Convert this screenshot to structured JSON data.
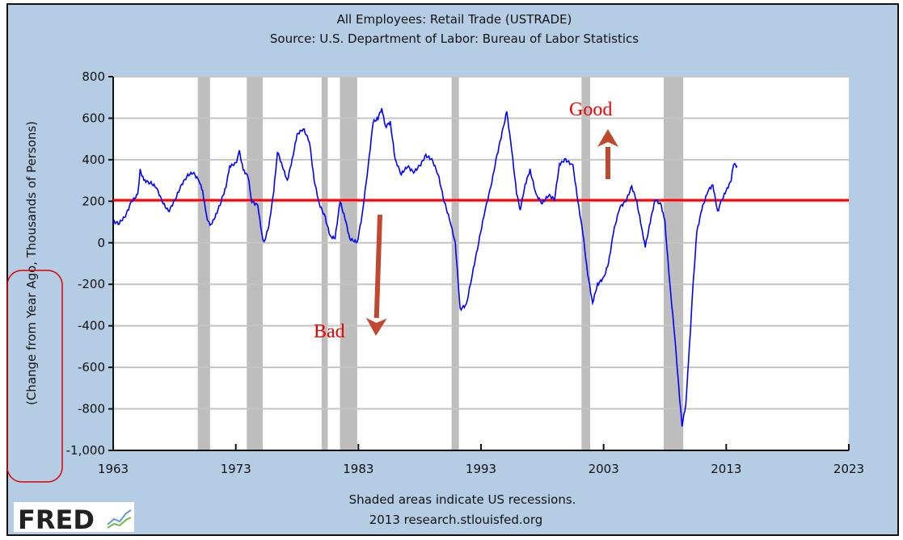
{
  "chart_data": {
    "type": "line",
    "title": "All Employees: Retail Trade (USTRADE)",
    "subtitle": "Source: U.S. Department of Labor: Bureau of Labor Statistics",
    "ylabel": "(Change from Year Ago, Thousands of Persons)",
    "xlabel": "",
    "xlim": [
      1963,
      2023
    ],
    "ylim": [
      -1000,
      800
    ],
    "x_ticks": [
      "1963",
      "1973",
      "1983",
      "1993",
      "2003",
      "2013",
      "2023"
    ],
    "y_ticks": [
      "800",
      "600",
      "400",
      "200",
      "0",
      "-200",
      "-400",
      "-600",
      "-800",
      "-1,000"
    ],
    "grid": true,
    "footer_note": "Shaded areas indicate US recessions.",
    "footer_source": "2013 research.stlouisfed.org",
    "logo_text": "FRED",
    "recessions": [
      [
        1969.9,
        1970.9
      ],
      [
        1973.9,
        1975.2
      ],
      [
        1980.0,
        1980.5
      ],
      [
        1981.5,
        1982.9
      ],
      [
        1990.6,
        1991.2
      ],
      [
        2001.2,
        2001.9
      ],
      [
        2007.9,
        2009.5
      ]
    ],
    "reference_line": {
      "value": 205,
      "from": 1963,
      "to": 2023,
      "color": "#ff0000"
    },
    "annotations": {
      "good": "Good",
      "bad": "Bad",
      "arrow_color": "#c0482f",
      "highlight_color": "#e00000"
    },
    "series": [
      {
        "name": "USTRADE change from year ago",
        "color": "#0000ff",
        "points": [
          [
            1963.0,
            100
          ],
          [
            1963.5,
            95
          ],
          [
            1964.0,
            130
          ],
          [
            1964.5,
            200
          ],
          [
            1965.0,
            230
          ],
          [
            1965.2,
            350
          ],
          [
            1965.5,
            300
          ],
          [
            1966.0,
            290
          ],
          [
            1966.5,
            270
          ],
          [
            1967.0,
            200
          ],
          [
            1967.5,
            150
          ],
          [
            1968.0,
            200
          ],
          [
            1968.5,
            270
          ],
          [
            1969.0,
            320
          ],
          [
            1969.5,
            340
          ],
          [
            1970.0,
            300
          ],
          [
            1970.3,
            250
          ],
          [
            1970.6,
            130
          ],
          [
            1970.9,
            80
          ],
          [
            1971.3,
            120
          ],
          [
            1971.8,
            200
          ],
          [
            1972.2,
            270
          ],
          [
            1972.5,
            370
          ],
          [
            1973.0,
            380
          ],
          [
            1973.3,
            440
          ],
          [
            1973.6,
            350
          ],
          [
            1974.0,
            320
          ],
          [
            1974.3,
            200
          ],
          [
            1974.8,
            180
          ],
          [
            1975.1,
            50
          ],
          [
            1975.3,
            0
          ],
          [
            1975.7,
            80
          ],
          [
            1976.1,
            250
          ],
          [
            1976.4,
            440
          ],
          [
            1976.8,
            370
          ],
          [
            1977.2,
            300
          ],
          [
            1977.6,
            400
          ],
          [
            1978.0,
            520
          ],
          [
            1978.5,
            550
          ],
          [
            1979.0,
            490
          ],
          [
            1979.4,
            300
          ],
          [
            1979.8,
            190
          ],
          [
            1980.3,
            120
          ],
          [
            1980.7,
            30
          ],
          [
            1981.1,
            20
          ],
          [
            1981.5,
            200
          ],
          [
            1981.9,
            120
          ],
          [
            1982.3,
            20
          ],
          [
            1982.9,
            0
          ],
          [
            1983.3,
            130
          ],
          [
            1983.8,
            370
          ],
          [
            1984.2,
            580
          ],
          [
            1984.6,
            600
          ],
          [
            1984.9,
            650
          ],
          [
            1985.2,
            560
          ],
          [
            1985.6,
            580
          ],
          [
            1986.0,
            400
          ],
          [
            1986.5,
            330
          ],
          [
            1987.0,
            370
          ],
          [
            1987.5,
            340
          ],
          [
            1988.0,
            370
          ],
          [
            1988.5,
            420
          ],
          [
            1989.0,
            400
          ],
          [
            1989.5,
            330
          ],
          [
            1990.0,
            200
          ],
          [
            1990.5,
            100
          ],
          [
            1990.9,
            0
          ],
          [
            1991.3,
            -320
          ],
          [
            1991.8,
            -300
          ],
          [
            1992.3,
            -150
          ],
          [
            1992.8,
            0
          ],
          [
            1993.3,
            150
          ],
          [
            1993.8,
            270
          ],
          [
            1994.3,
            420
          ],
          [
            1994.8,
            550
          ],
          [
            1995.1,
            630
          ],
          [
            1995.5,
            450
          ],
          [
            1995.9,
            240
          ],
          [
            1996.2,
            160
          ],
          [
            1996.6,
            280
          ],
          [
            1997.0,
            350
          ],
          [
            1997.5,
            230
          ],
          [
            1998.0,
            190
          ],
          [
            1998.5,
            230
          ],
          [
            1999.0,
            210
          ],
          [
            1999.4,
            380
          ],
          [
            1999.9,
            400
          ],
          [
            2000.5,
            370
          ],
          [
            2000.9,
            200
          ],
          [
            2001.3,
            50
          ],
          [
            2001.7,
            -150
          ],
          [
            2002.1,
            -290
          ],
          [
            2002.5,
            -200
          ],
          [
            2003.0,
            -170
          ],
          [
            2003.4,
            -100
          ],
          [
            2003.8,
            50
          ],
          [
            2004.3,
            170
          ],
          [
            2004.8,
            200
          ],
          [
            2005.3,
            270
          ],
          [
            2005.7,
            200
          ],
          [
            2006.1,
            70
          ],
          [
            2006.4,
            -20
          ],
          [
            2006.8,
            100
          ],
          [
            2007.2,
            210
          ],
          [
            2007.7,
            180
          ],
          [
            2008.0,
            100
          ],
          [
            2008.4,
            -200
          ],
          [
            2008.8,
            -450
          ],
          [
            2009.2,
            -750
          ],
          [
            2009.4,
            -880
          ],
          [
            2009.7,
            -780
          ],
          [
            2010.0,
            -500
          ],
          [
            2010.3,
            -200
          ],
          [
            2010.6,
            50
          ],
          [
            2011.0,
            160
          ],
          [
            2011.5,
            250
          ],
          [
            2011.9,
            280
          ],
          [
            2012.3,
            150
          ],
          [
            2012.6,
            200
          ],
          [
            2013.0,
            250
          ],
          [
            2013.4,
            300
          ],
          [
            2013.6,
            380
          ],
          [
            2013.9,
            370
          ]
        ]
      }
    ]
  }
}
